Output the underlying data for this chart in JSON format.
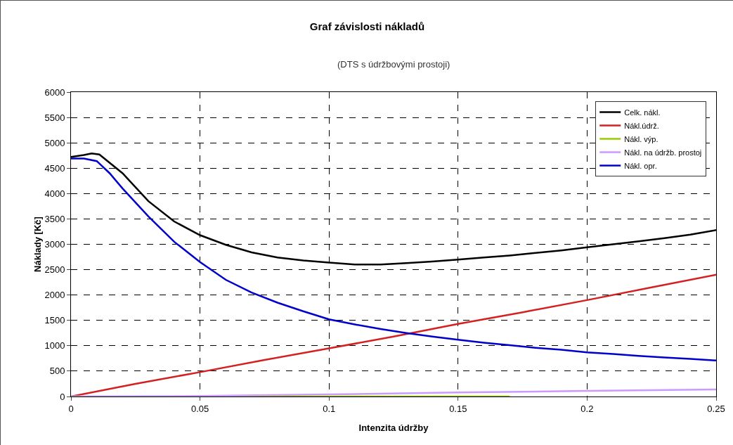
{
  "chart_data": {
    "type": "line",
    "title": "Graf závislosti nákladů",
    "subtitle": "(DTS s údržbovými prostoji)",
    "xlabel": "Intenzita údržby",
    "ylabel": "Náklady [Kč]",
    "xlim": [
      0,
      0.25
    ],
    "xticks": [
      0,
      0.05,
      0.1,
      0.15,
      0.2,
      0.25
    ],
    "ylim": [
      0,
      6000
    ],
    "yticks": [
      0,
      500,
      1000,
      1500,
      2000,
      2500,
      3000,
      3500,
      4000,
      4500,
      5000,
      5500,
      6000
    ],
    "grid": true,
    "legend": "top right",
    "line_style": "solid",
    "marker": "none",
    "series": [
      {
        "name": "Celk. nákl.",
        "color": "#000000",
        "x": [
          0,
          0.005,
          0.008,
          0.011,
          0.02,
          0.03,
          0.04,
          0.05,
          0.06,
          0.07,
          0.08,
          0.09,
          0.1,
          0.11,
          0.12,
          0.13,
          0.14,
          0.15,
          0.16,
          0.17,
          0.18,
          0.19,
          0.2,
          0.21,
          0.22,
          0.23,
          0.24,
          0.25
        ],
        "values": [
          4720,
          4760,
          4790,
          4770,
          4400,
          3850,
          3450,
          3180,
          2990,
          2840,
          2740,
          2680,
          2640,
          2600,
          2600,
          2630,
          2660,
          2700,
          2740,
          2780,
          2830,
          2880,
          2940,
          3000,
          3060,
          3120,
          3190,
          3280
        ]
      },
      {
        "name": "Nákl.údrž.",
        "color": "#d42020",
        "x": [
          0,
          0.025,
          0.05,
          0.075,
          0.1,
          0.125,
          0.15,
          0.175,
          0.2,
          0.225,
          0.25
        ],
        "values": [
          0,
          250,
          480,
          720,
          950,
          1180,
          1430,
          1660,
          1900,
          2150,
          2400
        ]
      },
      {
        "name": "Nákl. výp.",
        "color": "#99cc00",
        "x": [
          0,
          0.05,
          0.1,
          0.15,
          0.17
        ],
        "values": [
          0,
          0,
          0,
          0,
          0
        ]
      },
      {
        "name": "Nákl. na údržb. prostoj",
        "color": "#cc99ff",
        "x": [
          0,
          0.05,
          0.1,
          0.15,
          0.2,
          0.25
        ],
        "values": [
          0,
          10,
          40,
          80,
          110,
          140
        ]
      },
      {
        "name": "Nákl. opr.",
        "color": "#0000cc",
        "x": [
          0,
          0.005,
          0.01,
          0.015,
          0.02,
          0.03,
          0.04,
          0.05,
          0.06,
          0.07,
          0.08,
          0.09,
          0.1,
          0.11,
          0.12,
          0.13,
          0.14,
          0.15,
          0.16,
          0.17,
          0.18,
          0.19,
          0.2,
          0.21,
          0.22,
          0.23,
          0.24,
          0.25
        ],
        "values": [
          4690,
          4690,
          4640,
          4400,
          4100,
          3550,
          3050,
          2650,
          2300,
          2050,
          1850,
          1680,
          1520,
          1420,
          1330,
          1250,
          1180,
          1120,
          1060,
          1010,
          960,
          920,
          870,
          840,
          800,
          770,
          740,
          710
        ]
      }
    ]
  }
}
